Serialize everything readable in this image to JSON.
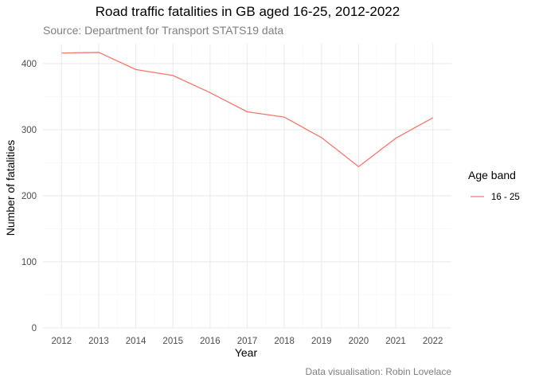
{
  "chart_data": {
    "type": "line",
    "title": "Road traffic fatalities in GB aged 16-25, 2012-2022",
    "subtitle": "Source: Department for Transport STATS19 data",
    "caption": "Data visualisation: Robin Lovelace",
    "xlabel": "Year",
    "ylabel": "Number of fatalities",
    "x": [
      2012,
      2013,
      2014,
      2015,
      2016,
      2017,
      2018,
      2019,
      2020,
      2021,
      2022
    ],
    "series": [
      {
        "name": "16 - 25",
        "color": "#F8766D",
        "values": [
          416,
          417,
          391,
          382,
          356,
          327,
          319,
          288,
          244,
          287,
          318
        ]
      }
    ],
    "legend": {
      "title": "Age band",
      "position": "right"
    },
    "ylim": [
      0,
      430
    ],
    "xlim": [
      2011.5,
      2022.5
    ],
    "y_ticks": [
      0,
      100,
      200,
      300,
      400
    ],
    "x_ticks": [
      2012,
      2013,
      2014,
      2015,
      2016,
      2017,
      2018,
      2019,
      2020,
      2021,
      2022
    ],
    "grid": true,
    "colors": {
      "major_grid": "#ebebeb",
      "minor_grid": "#f5f5f5",
      "tick_text": "#4d4d4d",
      "muted_text": "#7f7f7f"
    }
  }
}
